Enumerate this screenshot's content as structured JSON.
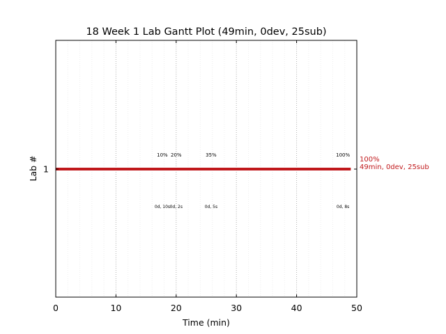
{
  "chart_data": {
    "type": "gantt",
    "title": "18 Week 1 Lab Gantt Plot (49min, 0dev, 25sub)",
    "xlabel": "Time (min)",
    "ylabel": "Lab #",
    "xlim": [
      0,
      50
    ],
    "x_ticks": [
      0,
      10,
      20,
      30,
      40,
      50
    ],
    "x_tick_labels": [
      "0",
      "10",
      "20",
      "30",
      "40",
      "50"
    ],
    "major_grid_step": 10,
    "minor_grid_step": 2,
    "lanes": [
      {
        "label": "1",
        "bar_start": 0,
        "bar_end": 49,
        "color": "#c0181b",
        "end_label_line1": "100%",
        "end_label_line2": "49min, 0dev, 25sub",
        "milestones": [
          {
            "x": 17.7,
            "percent": "10%",
            "detail": "0d, 10s"
          },
          {
            "x": 20.0,
            "percent": "20%",
            "detail": "0d, 2s"
          },
          {
            "x": 25.8,
            "percent": "35%",
            "detail": "0d, 5s"
          },
          {
            "x": 47.7,
            "percent": "100%",
            "detail": "0d, 8s"
          }
        ]
      }
    ]
  }
}
